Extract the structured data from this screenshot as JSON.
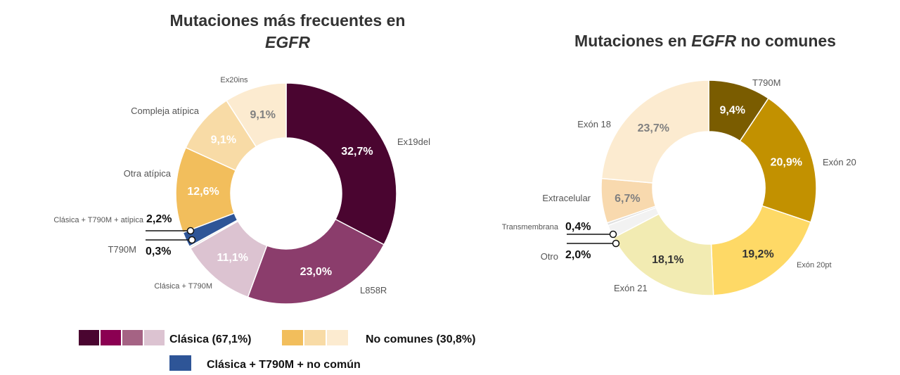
{
  "chart_data": [
    {
      "type": "donut",
      "title": {
        "line1": "Mutaciones más frecuentes en",
        "line2": "EGFR"
      },
      "slices": [
        {
          "label": "Ex19del",
          "value": 32.7,
          "display": "32,7%",
          "color": "#4A0530",
          "text_color": "#ffffff"
        },
        {
          "label": "L858R",
          "value": 23.0,
          "display": "23,0%",
          "color": "#8B3D6C",
          "text_color": "#ffffff"
        },
        {
          "label": "Clásica + T790M",
          "value": 11.1,
          "display": "11,1%",
          "color": "#DCC3D1",
          "text_color": "#ffffff"
        },
        {
          "label": "T790M",
          "value": 0.3,
          "display": "0,3%",
          "color": "#E4E4E4",
          "text_color": "#111111"
        },
        {
          "label": "Clásica + T790M + atípica",
          "value": 2.2,
          "display": "2,2%",
          "color": "#2E5597",
          "text_color": "#111111"
        },
        {
          "label": "Otra atípica",
          "value": 12.6,
          "display": "12,6%",
          "color": "#F2BE5C",
          "text_color": "#ffffff"
        },
        {
          "label": "Compleja atípica",
          "value": 9.1,
          "display": "9,1%",
          "color": "#F8DBA6",
          "text_color": "#ffffff"
        },
        {
          "label": "Ex20ins",
          "value": 9.1,
          "display": "9,1%",
          "color": "#FCEBD0",
          "text_color": "#808080"
        }
      ]
    },
    {
      "type": "donut",
      "title": {
        "before": "Mutaciones en ",
        "italic": "EGFR",
        "after": " no comunes"
      },
      "slices": [
        {
          "label": "T790M",
          "value": 9.4,
          "display": "9,4%",
          "color": "#7A5C00",
          "text_color": "#ffffff"
        },
        {
          "label": "Exón 20",
          "value": 20.9,
          "display": "20,9%",
          "color": "#C29100",
          "text_color": "#ffffff"
        },
        {
          "label": "Exón 20pt",
          "value": 19.2,
          "display": "19,2%",
          "color": "#FED966",
          "text_color": "#333333"
        },
        {
          "label": "Exón 21",
          "value": 18.1,
          "display": "18,1%",
          "color": "#F2EBB2",
          "text_color": "#333333"
        },
        {
          "label": "Otro",
          "value": 2.0,
          "display": "2,0%",
          "color": "#F2F2F2",
          "text_color": "#111111"
        },
        {
          "label": "Transmembrana",
          "value": 0.4,
          "display": "0,4%",
          "color": "#E0E0E0",
          "text_color": "#111111"
        },
        {
          "label": "Extracelular",
          "value": 6.7,
          "display": "6,7%",
          "color": "#F8D9AE",
          "text_color": "#808080"
        },
        {
          "label": "Exón 18",
          "value": 23.7,
          "display": "23,7%",
          "color": "#FCEBD0",
          "text_color": "#808080"
        }
      ]
    }
  ],
  "legend": {
    "clasica": {
      "text": "Clásica (67,1%)",
      "colors": [
        "#4A0530",
        "#8B0052",
        "#A56384",
        "#DCC3D1"
      ]
    },
    "no_comunes": {
      "text": "No comunes (30,8%)",
      "colors": [
        "#F2BE5C",
        "#F8DBA6",
        "#FCEBD0"
      ]
    },
    "mixta": {
      "text": "Clásica + T790M + no común",
      "colors": [
        "#2E5597"
      ]
    }
  }
}
